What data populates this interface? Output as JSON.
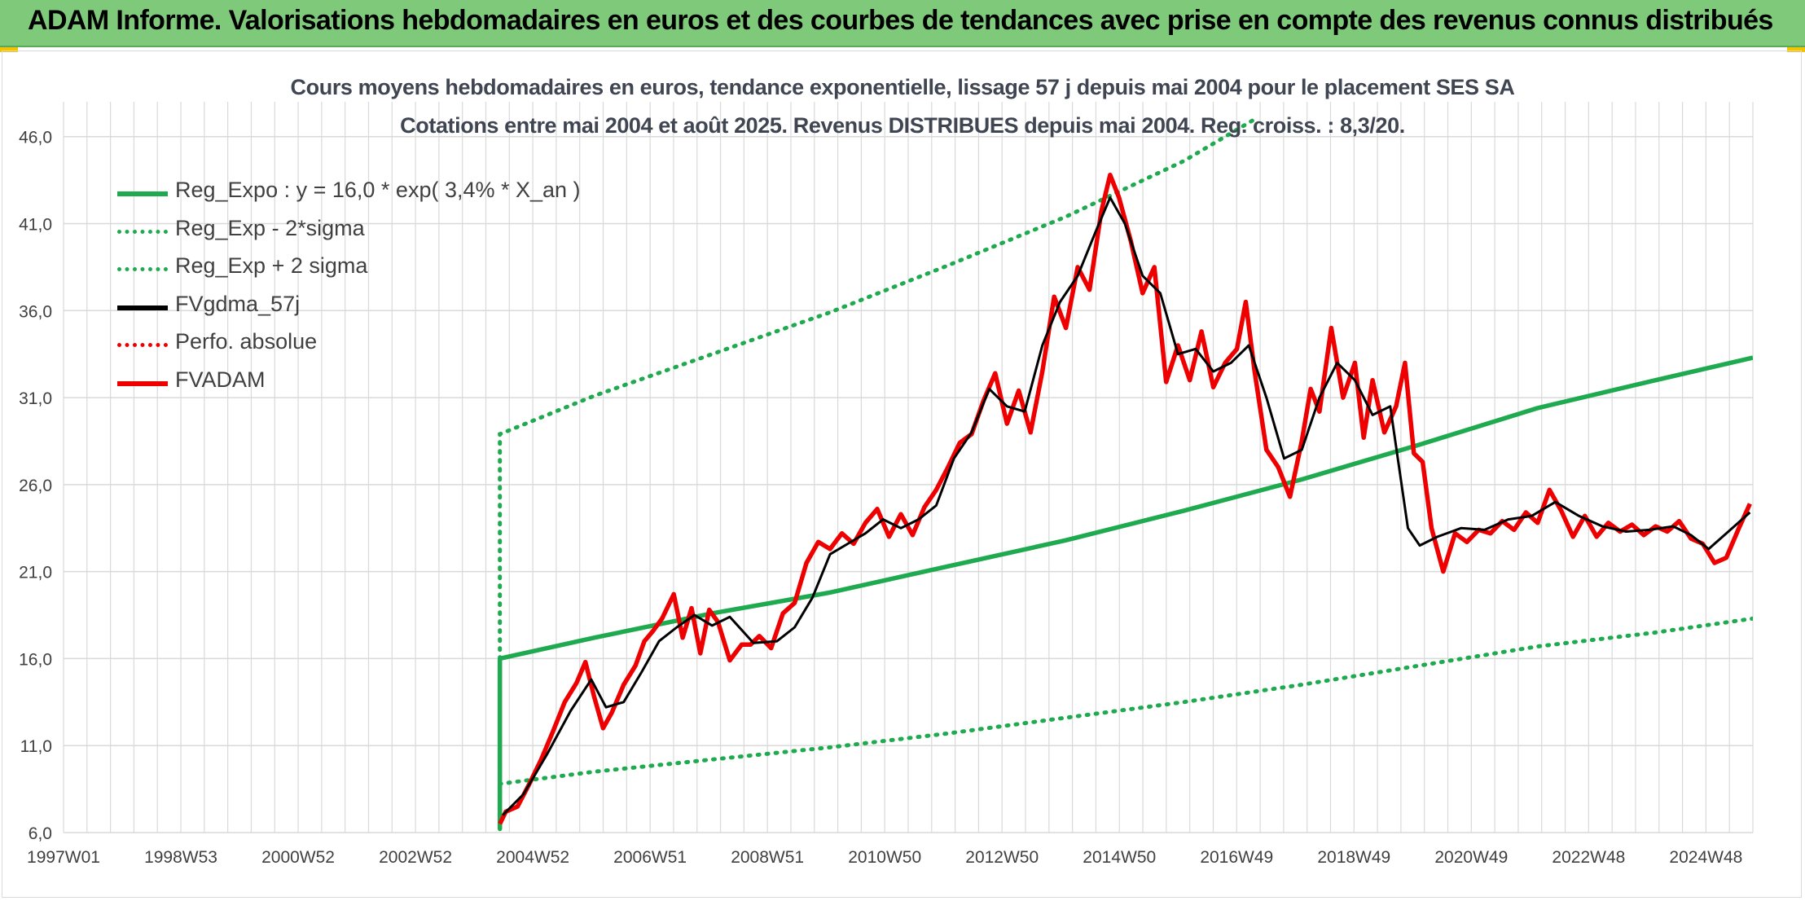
{
  "header": {
    "title": "ADAM Informe. Valorisations hebdomadaires en euros et des courbes de tendances avec prise en compte des revenus connus distribués"
  },
  "colors": {
    "banner": "#7fc97a",
    "trend_green": "#1faa50",
    "price_red": "#ee0000",
    "moving_avg": "#000000",
    "grid": "#d9d9d9"
  },
  "chart_data": {
    "type": "line",
    "title": "Cours moyens hebdomadaires en euros, tendance exponentielle, lissage 57 j depuis mai 2004 pour le placement SES SA",
    "subtitle": "Cotations entre mai 2004 et août 2025. Revenus DISTRIBUES depuis mai 2004. Reg. croiss. : 8,3/20.",
    "xlabel": "",
    "ylabel": "",
    "x_range": [
      1997.0,
      2025.65
    ],
    "ylim": [
      6.0,
      48.0
    ],
    "y_ticks": [
      "6,0",
      "11,0",
      "16,0",
      "21,0",
      "26,0",
      "31,0",
      "36,0",
      "41,0",
      "46,0"
    ],
    "x_ticks": [
      "1997W01",
      "1998W53",
      "2000W52",
      "2002W52",
      "2004W52",
      "2006W51",
      "2008W51",
      "2010W50",
      "2012W50",
      "2014W50",
      "2016W49",
      "2018W49",
      "2020W49",
      "2022W48",
      "2024W48"
    ],
    "grid": true,
    "legend_position": "top-left",
    "series": [
      {
        "name": "Reg_Expo : y = 16,0 * exp( 3,4% *  X_an )",
        "style": "solid-thick",
        "color": "#1faa50",
        "x": [
          2004.4,
          2004.4,
          2006,
          2008,
          2010,
          2012,
          2014,
          2016,
          2018,
          2020,
          2022,
          2024,
          2025.65
        ],
        "y": [
          6.2,
          16.0,
          17.2,
          18.6,
          19.8,
          21.3,
          22.8,
          24.5,
          26.3,
          28.3,
          30.4,
          32.0,
          33.3
        ]
      },
      {
        "name": "Reg_Exp - 2*sigma",
        "style": "dotted",
        "color": "#1faa50",
        "x": [
          2004.4,
          2004.4,
          2006,
          2008,
          2010,
          2012,
          2014,
          2016,
          2018,
          2020,
          2022,
          2024,
          2025.65
        ],
        "y": [
          6.2,
          8.8,
          9.5,
          10.2,
          10.9,
          11.7,
          12.6,
          13.5,
          14.5,
          15.6,
          16.7,
          17.5,
          18.3
        ]
      },
      {
        "name": "Reg_Exp + 2 sigma",
        "style": "dotted",
        "color": "#1faa50",
        "x": [
          2004.4,
          2004.4,
          2006,
          2008,
          2010,
          2012,
          2014,
          2016,
          2017.2
        ],
        "y": [
          6.2,
          28.9,
          31.1,
          33.5,
          35.9,
          38.6,
          41.4,
          44.6,
          47.0
        ]
      },
      {
        "name": "FVgdma_57j",
        "style": "solid",
        "color": "#000000",
        "x": [
          2004.45,
          2004.8,
          2005.2,
          2005.6,
          2005.95,
          2006.2,
          2006.5,
          2006.8,
          2007.1,
          2007.4,
          2007.7,
          2008.0,
          2008.3,
          2008.7,
          2009.1,
          2009.4,
          2009.7,
          2010.0,
          2010.3,
          2010.6,
          2010.9,
          2011.2,
          2011.5,
          2011.8,
          2012.1,
          2012.4,
          2012.7,
          2013.0,
          2013.3,
          2013.6,
          2013.9,
          2014.2,
          2014.5,
          2014.75,
          2015.0,
          2015.3,
          2015.6,
          2015.9,
          2016.2,
          2016.5,
          2016.8,
          2017.1,
          2017.4,
          2017.7,
          2018.0,
          2018.3,
          2018.6,
          2018.9,
          2019.2,
          2019.5,
          2019.8,
          2020.0,
          2020.3,
          2020.7,
          2021.1,
          2021.5,
          2021.9,
          2022.3,
          2022.7,
          2023.1,
          2023.5,
          2023.9,
          2024.3,
          2024.6,
          2024.9,
          2025.2,
          2025.6
        ],
        "y": [
          7.0,
          8.2,
          10.5,
          13.0,
          14.8,
          13.2,
          13.5,
          15.2,
          17.0,
          17.8,
          18.5,
          17.9,
          18.4,
          16.9,
          17.0,
          17.8,
          19.5,
          22.0,
          22.6,
          23.2,
          24.0,
          23.5,
          24.0,
          24.8,
          27.5,
          29.0,
          31.5,
          30.5,
          30.2,
          34.0,
          36.5,
          38.0,
          40.5,
          42.5,
          41.0,
          38.0,
          37.0,
          33.5,
          33.8,
          32.5,
          33.0,
          34.0,
          31.0,
          27.5,
          28.0,
          31.0,
          33.0,
          32.0,
          30.0,
          30.5,
          23.5,
          22.5,
          23.0,
          23.5,
          23.4,
          24.0,
          24.2,
          25.0,
          24.2,
          23.6,
          23.3,
          23.4,
          23.6,
          23.1,
          22.3,
          23.2,
          24.4
        ]
      },
      {
        "name": "Perfo. absolue",
        "style": "dotted",
        "color": "#ee0000",
        "x": [],
        "y": []
      },
      {
        "name": "FVADAM",
        "style": "solid-thick",
        "color": "#ee0000",
        "x": [
          2004.4,
          2004.5,
          2004.7,
          2004.9,
          2005.1,
          2005.3,
          2005.5,
          2005.7,
          2005.85,
          2006.0,
          2006.15,
          2006.3,
          2006.5,
          2006.7,
          2006.85,
          2007.0,
          2007.15,
          2007.35,
          2007.5,
          2007.65,
          2007.8,
          2007.95,
          2008.1,
          2008.3,
          2008.5,
          2008.65,
          2008.8,
          2009.0,
          2009.2,
          2009.4,
          2009.6,
          2009.8,
          2010.0,
          2010.2,
          2010.4,
          2010.6,
          2010.8,
          2011.0,
          2011.2,
          2011.4,
          2011.6,
          2011.8,
          2012.0,
          2012.2,
          2012.4,
          2012.6,
          2012.8,
          2013.0,
          2013.2,
          2013.4,
          2013.6,
          2013.8,
          2014.0,
          2014.2,
          2014.4,
          2014.6,
          2014.75,
          2014.9,
          2015.1,
          2015.3,
          2015.5,
          2015.7,
          2015.9,
          2016.1,
          2016.3,
          2016.5,
          2016.7,
          2016.9,
          2017.05,
          2017.2,
          2017.4,
          2017.6,
          2017.8,
          2018.0,
          2018.15,
          2018.3,
          2018.5,
          2018.7,
          2018.9,
          2019.05,
          2019.2,
          2019.4,
          2019.6,
          2019.75,
          2019.9,
          2020.05,
          2020.2,
          2020.4,
          2020.6,
          2020.8,
          2021.0,
          2021.2,
          2021.4,
          2021.6,
          2021.8,
          2022.0,
          2022.2,
          2022.4,
          2022.6,
          2022.8,
          2023.0,
          2023.2,
          2023.4,
          2023.6,
          2023.8,
          2024.0,
          2024.2,
          2024.4,
          2024.6,
          2024.8,
          2025.0,
          2025.2,
          2025.4,
          2025.6
        ],
        "y": [
          6.5,
          7.2,
          7.5,
          8.8,
          10.2,
          11.8,
          13.5,
          14.6,
          15.8,
          13.8,
          12.0,
          12.9,
          14.5,
          15.6,
          17.0,
          17.6,
          18.3,
          19.7,
          17.2,
          18.9,
          16.3,
          18.8,
          18.1,
          15.9,
          16.8,
          16.8,
          17.3,
          16.6,
          18.6,
          19.2,
          21.5,
          22.7,
          22.3,
          23.2,
          22.6,
          23.8,
          24.6,
          23.0,
          24.3,
          23.1,
          24.7,
          25.7,
          27.0,
          28.4,
          28.9,
          30.8,
          32.4,
          29.5,
          31.4,
          29.0,
          32.5,
          36.8,
          35.0,
          38.5,
          37.2,
          41.7,
          43.8,
          42.5,
          40.0,
          37.0,
          38.5,
          31.9,
          34.0,
          32.0,
          34.8,
          31.6,
          33.0,
          33.8,
          36.5,
          32.5,
          28.0,
          27.0,
          25.3,
          28.5,
          31.5,
          30.2,
          35.0,
          31.0,
          33.0,
          28.7,
          32.0,
          29.0,
          30.5,
          33.0,
          27.8,
          27.3,
          23.5,
          21.0,
          23.2,
          22.7,
          23.4,
          23.2,
          23.9,
          23.4,
          24.4,
          23.8,
          25.7,
          24.5,
          23.0,
          24.2,
          23.0,
          23.8,
          23.3,
          23.7,
          23.1,
          23.6,
          23.3,
          23.9,
          22.9,
          22.6,
          21.5,
          21.8,
          23.4,
          24.9
        ]
      }
    ]
  }
}
